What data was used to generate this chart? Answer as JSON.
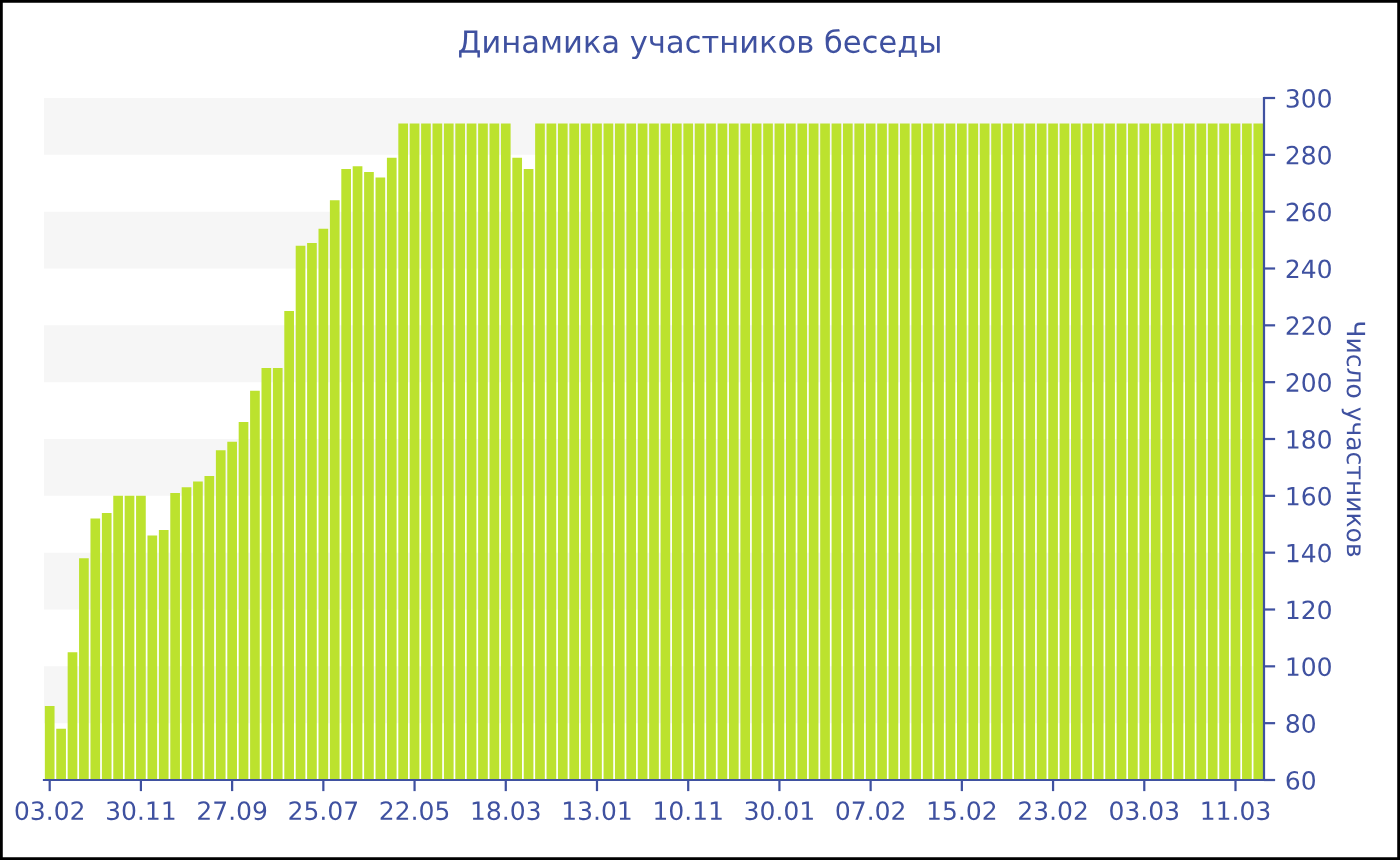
{
  "chart_data": {
    "type": "bar",
    "title": "Динамика участников беседы",
    "ylabel": "Число участников",
    "categories": [
      "03.02",
      null,
      null,
      null,
      null,
      null,
      null,
      null,
      "30.11",
      null,
      null,
      null,
      null,
      null,
      null,
      null,
      "27.09",
      null,
      null,
      null,
      null,
      null,
      null,
      null,
      "25.07",
      null,
      null,
      null,
      null,
      null,
      null,
      null,
      "22.05",
      null,
      null,
      null,
      null,
      null,
      null,
      null,
      "18.03",
      null,
      null,
      null,
      null,
      null,
      null,
      null,
      "13.01",
      null,
      null,
      null,
      null,
      null,
      null,
      null,
      "10.11",
      null,
      null,
      null,
      null,
      null,
      null,
      null,
      "30.01",
      null,
      null,
      null,
      null,
      null,
      null,
      null,
      "07.02",
      null,
      null,
      null,
      null,
      null,
      null,
      null,
      "15.02",
      null,
      null,
      null,
      null,
      null,
      null,
      null,
      "23.02",
      null,
      null,
      null,
      null,
      null,
      null,
      null,
      "03.03",
      null,
      null,
      null,
      null,
      null,
      null,
      null,
      "11.03",
      null,
      null
    ],
    "values": [
      86,
      78,
      105,
      138,
      152,
      154,
      160,
      160,
      160,
      146,
      148,
      161,
      163,
      165,
      167,
      176,
      179,
      186,
      197,
      205,
      205,
      225,
      248,
      249,
      254,
      264,
      275,
      276,
      274,
      272,
      279,
      291,
      291,
      291,
      291,
      291,
      291,
      291,
      291,
      291,
      291,
      279,
      275,
      291,
      291,
      291,
      291,
      291,
      291,
      291,
      291,
      291,
      291,
      291,
      291,
      291,
      291,
      291,
      291,
      291,
      291,
      291,
      291,
      291,
      291,
      291,
      291,
      291,
      291,
      291,
      291,
      291,
      291,
      291,
      291,
      291,
      291,
      291,
      291,
      291,
      291,
      291,
      291,
      291,
      291,
      291,
      291,
      291,
      291,
      291,
      291,
      291,
      291,
      291,
      291,
      291,
      291,
      291,
      291,
      291,
      291,
      291,
      291,
      291,
      291,
      291,
      291
    ],
    "color": "#bce22e",
    "ylim": [
      60,
      300
    ],
    "yticks": [
      60,
      80,
      100,
      120,
      140,
      160,
      180,
      200,
      220,
      240,
      260,
      280,
      300
    ],
    "bands": [
      {
        "axis": "y",
        "from": 80,
        "to": 100,
        "color": "#f6f6f6"
      },
      {
        "axis": "y",
        "from": 120,
        "to": 140,
        "color": "#f6f6f6"
      },
      {
        "axis": "y",
        "from": 160,
        "to": 180,
        "color": "#f6f6f6"
      },
      {
        "axis": "y",
        "from": 200,
        "to": 220,
        "color": "#f6f6f6"
      },
      {
        "axis": "y",
        "from": 240,
        "to": 260,
        "color": "#f6f6f6"
      },
      {
        "axis": "y",
        "from": 280,
        "to": 300,
        "color": "#f6f6f6"
      }
    ]
  }
}
